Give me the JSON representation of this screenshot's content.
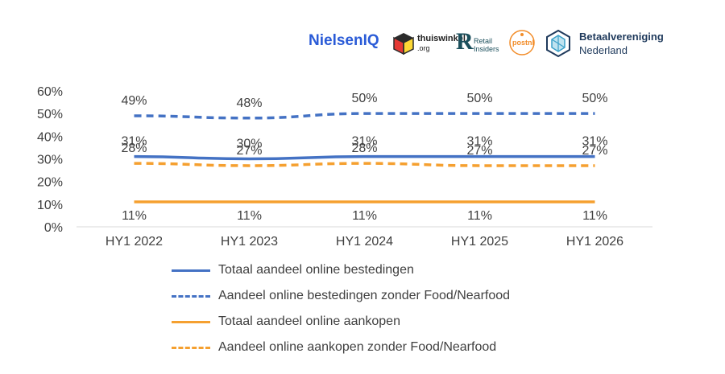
{
  "logos": [
    {
      "name": "NielsenIQ",
      "text": "NielsenIQ"
    },
    {
      "name": "thuiswinkel",
      "text": "thuiswinkel",
      "sub": ".org"
    },
    {
      "name": "retail-insiders",
      "text": "Retail",
      "sub": "Insiders"
    },
    {
      "name": "postnl",
      "text": "postnl"
    },
    {
      "name": "betaalvereniging",
      "text": "Betaalvereniging",
      "sub": "Nederland"
    }
  ],
  "colors": {
    "blue": "#4472C4",
    "orange": "#F5A030",
    "text": "#404040",
    "nielsen": "#2A5BD7",
    "betaal": "#1F3A5C"
  },
  "chart_data": {
    "type": "line",
    "categories": [
      "HY1 2022",
      "HY1 2023",
      "HY1 2024",
      "HY1 2025",
      "HY1 2026"
    ],
    "yticks": [
      "0%",
      "10%",
      "20%",
      "30%",
      "40%",
      "50%",
      "60%"
    ],
    "ylim": [
      0,
      60
    ],
    "grid": false,
    "legend_position": "bottom",
    "series": [
      {
        "name": "Totaal aandeel online bestedingen",
        "values": [
          31,
          30,
          31,
          31,
          31
        ],
        "labels": [
          "31%",
          "30%",
          "31%",
          "31%",
          "31%"
        ],
        "color": "#4472C4",
        "dashed": false
      },
      {
        "name": "Aandeel online bestedingen zonder Food/Nearfood",
        "values": [
          49,
          48,
          50,
          50,
          50
        ],
        "labels": [
          "49%",
          "48%",
          "50%",
          "50%",
          "50%"
        ],
        "color": "#4472C4",
        "dashed": true
      },
      {
        "name": "Totaal aandeel online aankopen",
        "values": [
          11,
          11,
          11,
          11,
          11
        ],
        "labels": [
          "11%",
          "11%",
          "11%",
          "11%",
          "11%"
        ],
        "color": "#F5A030",
        "dashed": false
      },
      {
        "name": "Aandeel online aankopen zonder Food/Nearfood",
        "values": [
          28,
          27,
          28,
          27,
          27
        ],
        "labels": [
          "28%",
          "27%",
          "28%",
          "27%",
          "27%"
        ],
        "color": "#F5A030",
        "dashed": true
      }
    ]
  }
}
